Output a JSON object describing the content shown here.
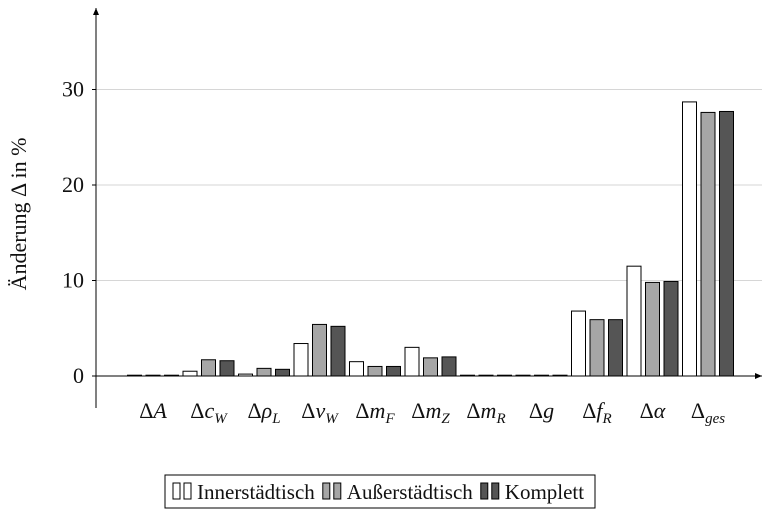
{
  "chart_data": {
    "type": "bar",
    "title": "",
    "xlabel": "",
    "ylabel": "Änderung Δ in %",
    "ylim": [
      0,
      38
    ],
    "yticks": [
      0,
      10,
      20,
      30
    ],
    "grid": true,
    "legend_position": "bottom",
    "categories": [
      {
        "base": "Δ",
        "main": "A",
        "sub": ""
      },
      {
        "base": "Δ",
        "main": "c",
        "sub": "W"
      },
      {
        "base": "Δ",
        "main": "ρ",
        "sub": "L"
      },
      {
        "base": "Δ",
        "main": "v",
        "sub": "W"
      },
      {
        "base": "Δ",
        "main": "m",
        "sub": "F"
      },
      {
        "base": "Δ",
        "main": "m",
        "sub": "Z"
      },
      {
        "base": "Δ",
        "main": "m",
        "sub": "R"
      },
      {
        "base": "Δ",
        "main": "g",
        "sub": ""
      },
      {
        "base": "Δ",
        "main": "f",
        "sub": "R"
      },
      {
        "base": "Δ",
        "main": "α",
        "sub": ""
      },
      {
        "base": "Δ",
        "main": "",
        "sub": "ges"
      }
    ],
    "series": [
      {
        "name": "Innerstädtisch",
        "color": "#ffffff",
        "values": [
          0,
          0.5,
          0.2,
          3.4,
          1.5,
          3.0,
          0,
          0,
          6.8,
          11.5,
          28.7
        ]
      },
      {
        "name": "Außerstädtisch",
        "color": "#a6a6a6",
        "values": [
          0,
          1.7,
          0.8,
          5.4,
          1.0,
          1.9,
          0,
          0,
          5.9,
          9.8,
          27.6
        ]
      },
      {
        "name": "Komplett",
        "color": "#555555",
        "values": [
          0,
          1.6,
          0.7,
          5.2,
          1.0,
          2.0,
          0,
          0,
          5.9,
          9.9,
          27.7
        ]
      }
    ]
  }
}
